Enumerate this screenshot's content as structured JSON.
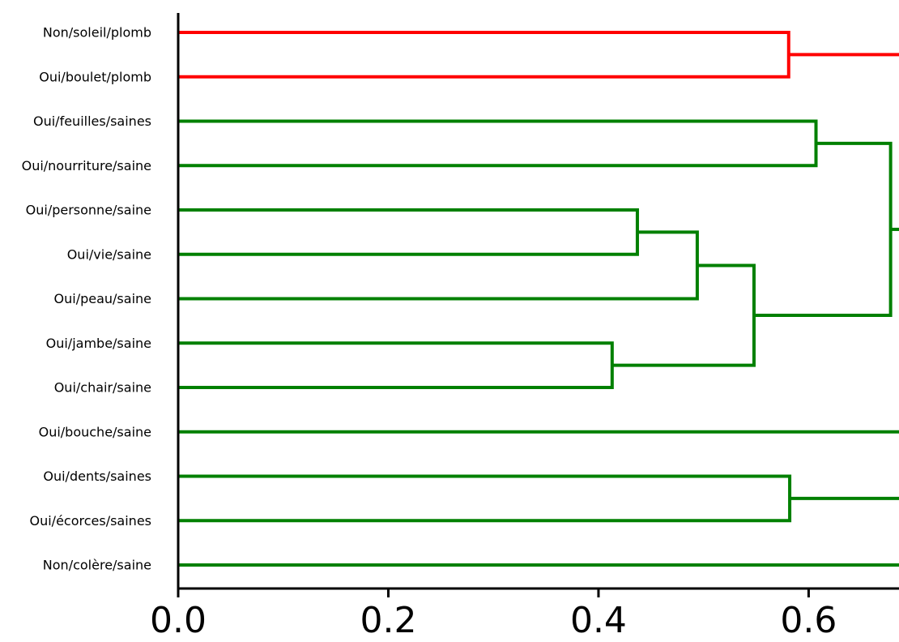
{
  "chart_data": {
    "type": "dendrogram",
    "orientation": "horizontal",
    "title": "",
    "xlabel": "",
    "ylabel": "",
    "xlim": [
      0,
      0.686
    ],
    "x_ticks": [
      "0.0",
      "0.2",
      "0.4",
      "0.6"
    ],
    "x_tick_values": [
      0.0,
      0.2,
      0.4,
      0.6
    ],
    "leaves": [
      "Non/soleil/plomb",
      "Oui/boulet/plomb",
      "Oui/feuilles/saines",
      "Oui/nourriture/saine",
      "Oui/personne/saine",
      "Oui/vie/saine",
      "Oui/peau/saine",
      "Oui/jambe/saine",
      "Oui/chair/saine",
      "Oui/bouche/saine",
      "Oui/dents/saines",
      "Oui/écorces/saines",
      "Non/colère/saine"
    ],
    "links": [
      {
        "a": "leaf:0",
        "b": "leaf:1",
        "height": 0.581,
        "color": "#ff0000"
      },
      {
        "a": "leaf:2",
        "b": "leaf:3",
        "height": 0.607,
        "color": "#008000"
      },
      {
        "a": "leaf:4",
        "b": "leaf:5",
        "height": 0.437,
        "color": "#008000"
      },
      {
        "a": "link:2",
        "b": "leaf:6",
        "height": 0.494,
        "color": "#008000"
      },
      {
        "a": "leaf:7",
        "b": "leaf:8",
        "height": 0.413,
        "color": "#008000"
      },
      {
        "a": "link:3",
        "b": "link:4",
        "height": 0.548,
        "color": "#008000"
      },
      {
        "a": "link:1",
        "b": "link:5",
        "height": 0.678,
        "color": "#008000"
      },
      {
        "a": "leaf:10",
        "b": "leaf:11",
        "height": 0.582,
        "color": "#008000"
      }
    ],
    "open_branches": [
      {
        "from": "link:0",
        "color": "#ff0000"
      },
      {
        "from": "link:6",
        "color": "#008000"
      },
      {
        "from": "leaf:9",
        "color": "#008000"
      },
      {
        "from": "link:7",
        "color": "#008000"
      },
      {
        "from": "leaf:12",
        "color": "#008000"
      }
    ],
    "colors": {
      "cluster_1": "#ff0000",
      "cluster_2": "#008000",
      "axis": "#000000"
    }
  }
}
